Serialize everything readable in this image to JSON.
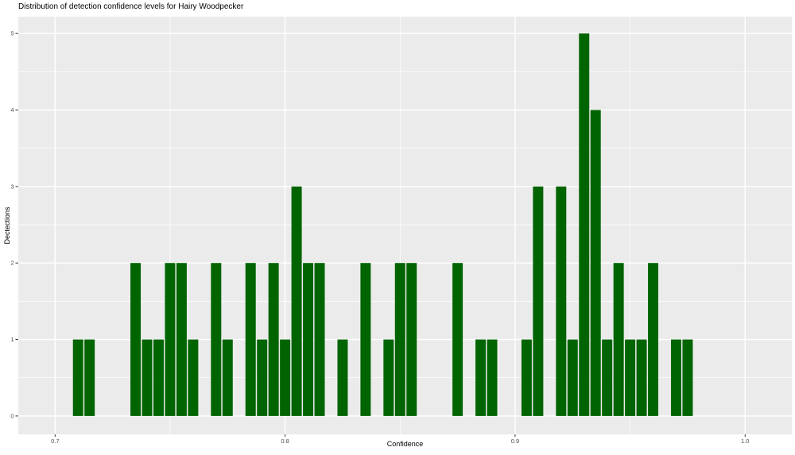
{
  "chart_data": {
    "type": "bar",
    "subtype": "histogram",
    "title": "Distribution of detection confidence levels for Hairy Woodpecker",
    "xlabel": "Confidence",
    "ylabel": "Dectections",
    "bin_width": 0.005,
    "bins": [
      {
        "x": 0.71,
        "count": 1
      },
      {
        "x": 0.715,
        "count": 1
      },
      {
        "x": 0.735,
        "count": 2
      },
      {
        "x": 0.74,
        "count": 1
      },
      {
        "x": 0.745,
        "count": 1
      },
      {
        "x": 0.75,
        "count": 2
      },
      {
        "x": 0.755,
        "count": 2
      },
      {
        "x": 0.76,
        "count": 1
      },
      {
        "x": 0.77,
        "count": 2
      },
      {
        "x": 0.775,
        "count": 1
      },
      {
        "x": 0.785,
        "count": 2
      },
      {
        "x": 0.79,
        "count": 1
      },
      {
        "x": 0.795,
        "count": 2
      },
      {
        "x": 0.8,
        "count": 1
      },
      {
        "x": 0.805,
        "count": 3
      },
      {
        "x": 0.81,
        "count": 2
      },
      {
        "x": 0.815,
        "count": 2
      },
      {
        "x": 0.825,
        "count": 1
      },
      {
        "x": 0.835,
        "count": 2
      },
      {
        "x": 0.845,
        "count": 1
      },
      {
        "x": 0.85,
        "count": 2
      },
      {
        "x": 0.855,
        "count": 2
      },
      {
        "x": 0.875,
        "count": 2
      },
      {
        "x": 0.885,
        "count": 1
      },
      {
        "x": 0.89,
        "count": 1
      },
      {
        "x": 0.905,
        "count": 1
      },
      {
        "x": 0.91,
        "count": 3
      },
      {
        "x": 0.92,
        "count": 3
      },
      {
        "x": 0.925,
        "count": 1
      },
      {
        "x": 0.93,
        "count": 5
      },
      {
        "x": 0.935,
        "count": 4
      },
      {
        "x": 0.94,
        "count": 1
      },
      {
        "x": 0.945,
        "count": 2
      },
      {
        "x": 0.95,
        "count": 1
      },
      {
        "x": 0.955,
        "count": 1
      },
      {
        "x": 0.96,
        "count": 2
      },
      {
        "x": 0.97,
        "count": 1
      },
      {
        "x": 0.975,
        "count": 1
      }
    ],
    "x_ticks": [
      "0.7",
      "0.8",
      "0.9",
      "1.0"
    ],
    "x_tick_values": [
      0.7,
      0.8,
      0.9,
      1.0
    ],
    "y_ticks": [
      "0",
      "1",
      "2",
      "3",
      "4",
      "5"
    ],
    "y_tick_values": [
      0,
      1,
      2,
      3,
      4,
      5
    ],
    "x_minor_gridlines": [
      0.75,
      0.85,
      0.95
    ],
    "y_minor_gridlines": [
      0.5,
      1.5,
      2.5,
      3.5,
      4.5
    ],
    "xlim": [
      0.684,
      1.0203
    ],
    "ylim": [
      -0.24,
      5.22
    ],
    "y_data_range": [
      0,
      5
    ],
    "grid": "on",
    "legend": "none",
    "colors": {
      "bar": "#006400",
      "panel_bg": "#EBEBEB",
      "grid": "#FFFFFF",
      "tick_mark": "#333333",
      "tick_label": "#4D4D4D",
      "text": "#000000"
    }
  }
}
